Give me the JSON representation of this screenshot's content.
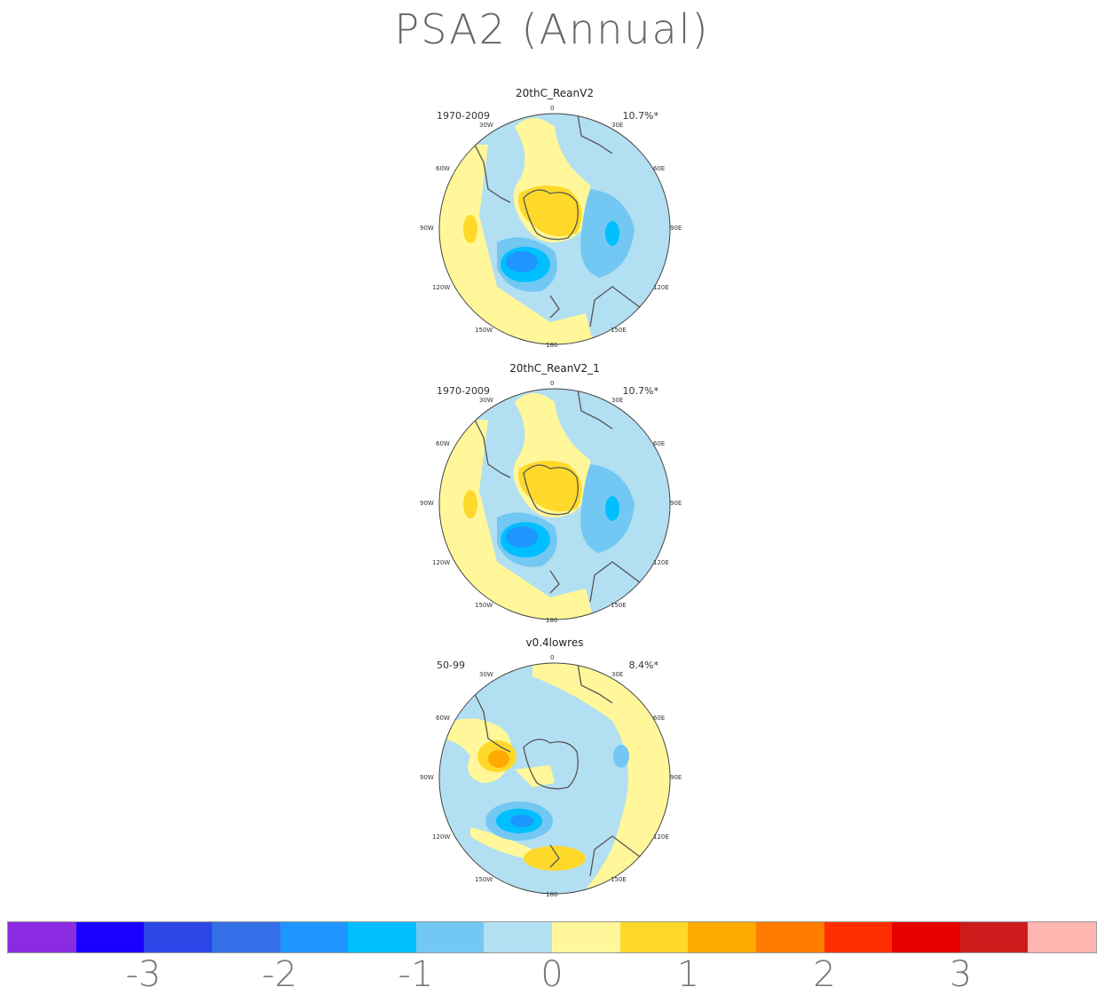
{
  "title": "PSA2 (Annual)",
  "panels": [
    {
      "title": "20thC_ReanV2",
      "period": "1970-2009",
      "percent": "10.7%*"
    },
    {
      "title": "20thC_ReanV2_1",
      "period": "1970-2009",
      "percent": "10.7%*"
    },
    {
      "title": "v0.4lowres",
      "period": "50-99",
      "percent": "8.4%*"
    }
  ],
  "longitude_labels": {
    "top": "0",
    "bottom": "180",
    "l30w": "30W",
    "l60w": "60W",
    "l90w": "90W",
    "l120w": "120W",
    "l150w": "150W",
    "l30e": "30E",
    "l60e": "60E",
    "l90e": "90E",
    "l120e": "120E",
    "l150e": "150E"
  },
  "colorbar": {
    "colors": [
      "#8a2be2",
      "#1a00ff",
      "#2b47e8",
      "#3570e8",
      "#1e96ff",
      "#00bfff",
      "#72c8f2",
      "#b3dff2",
      "#fff799",
      "#ffd92a",
      "#ffaa00",
      "#ff7c00",
      "#ff2e00",
      "#e60000",
      "#cc1c1c",
      "#ffb5b0"
    ],
    "ticks": [
      "-3",
      "-2",
      "-1",
      "0",
      "1",
      "2",
      "3"
    ]
  },
  "colors": {
    "land_outline": "#555555",
    "neg1": "#b3dff2",
    "neg2": "#72c8f2",
    "neg3": "#00bfff",
    "neg4": "#1e96ff",
    "pos1": "#fff799",
    "pos2": "#ffd92a",
    "pos3": "#ffaa00"
  }
}
